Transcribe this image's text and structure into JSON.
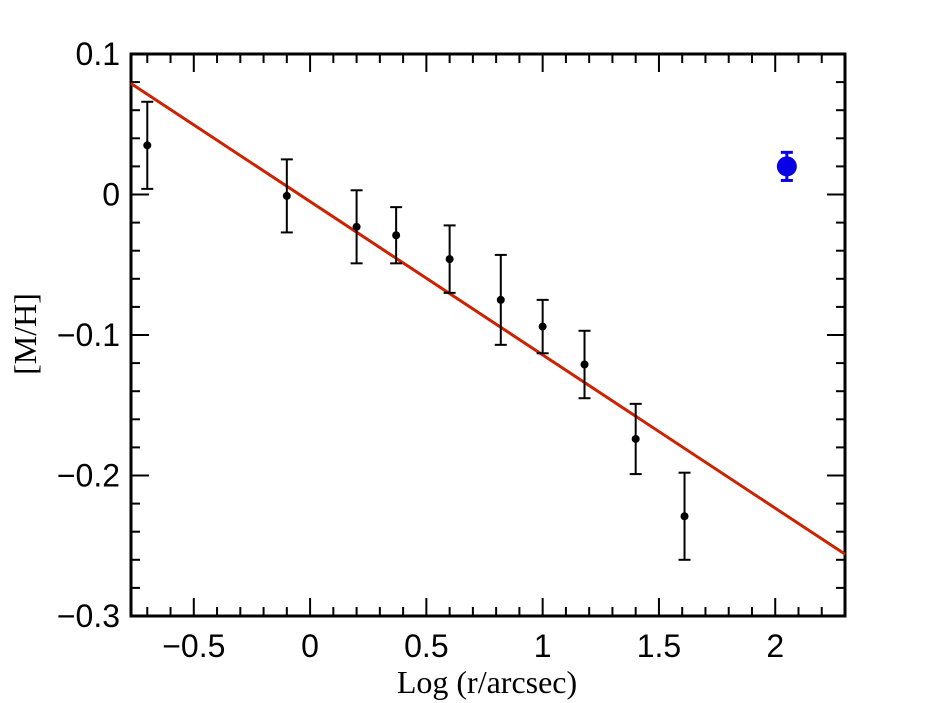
{
  "chart_data": {
    "type": "scatter",
    "title": "",
    "xlabel": "Log (r/arcsec)",
    "ylabel": "[M/H]",
    "xlim": [
      -0.77,
      2.3
    ],
    "ylim": [
      -0.3,
      0.1
    ],
    "x_ticks": [
      -0.5,
      0,
      0.5,
      1,
      1.5,
      2
    ],
    "x_tick_labels": [
      "−0.5",
      "0",
      "0.5",
      "1",
      "1.5",
      "2"
    ],
    "y_ticks": [
      0.1,
      0,
      -0.1,
      -0.2,
      -0.3
    ],
    "y_tick_labels": [
      "0.1",
      "0",
      "−0.1",
      "−0.2",
      "−0.3"
    ],
    "x_minor_step": 0.1,
    "y_minor_step": 0.02,
    "grid": false,
    "series": [
      {
        "kind": "points_with_errorbars",
        "color": "#000000",
        "points": [
          {
            "x": -0.7,
            "y": 0.035,
            "yerr": 0.031
          },
          {
            "x": -0.1,
            "y": -0.001,
            "yerr": 0.026
          },
          {
            "x": 0.2,
            "y": -0.023,
            "yerr": 0.026
          },
          {
            "x": 0.37,
            "y": -0.029,
            "yerr": 0.02
          },
          {
            "x": 0.6,
            "y": -0.046,
            "yerr": 0.024
          },
          {
            "x": 0.82,
            "y": -0.075,
            "yerr": 0.032
          },
          {
            "x": 1.0,
            "y": -0.094,
            "yerr": 0.019
          },
          {
            "x": 1.18,
            "y": -0.121,
            "yerr": 0.024
          },
          {
            "x": 1.4,
            "y": -0.174,
            "yerr": 0.025
          },
          {
            "x": 1.61,
            "y": -0.229,
            "yerr": 0.031
          }
        ]
      },
      {
        "kind": "highlight_point",
        "color": "#0a00e6",
        "points": [
          {
            "x": 2.05,
            "y": 0.02,
            "yerr": 0.01
          }
        ]
      },
      {
        "kind": "fit_line",
        "color": "#cc2200",
        "points": [
          {
            "x": -0.77,
            "y": 0.079
          },
          {
            "x": 2.3,
            "y": -0.256
          }
        ]
      }
    ]
  }
}
